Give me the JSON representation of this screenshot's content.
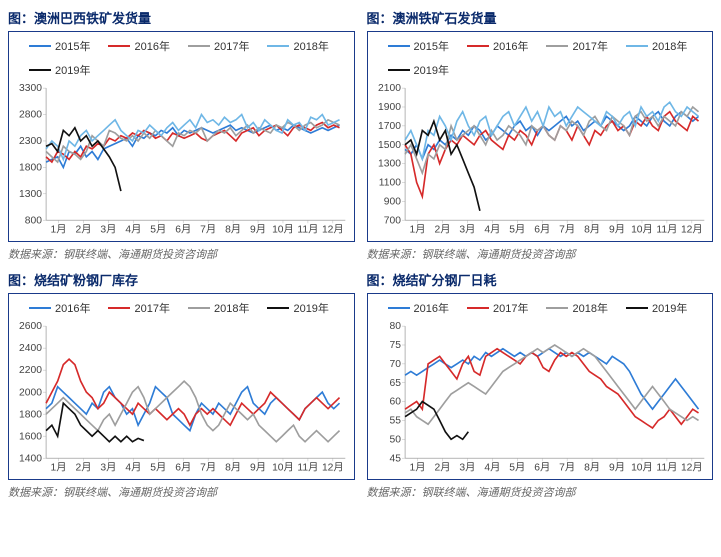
{
  "charts": [
    {
      "title": "图：澳洲巴西铁矿发货量",
      "source": "数据来源：钢联终端、海通期货投资咨询部",
      "type": "line",
      "legend_fontsize": 11,
      "title_fontsize": 13,
      "title_color": "#0a2a6b",
      "border_color": "#1a3a8a",
      "background_color": "#ffffff",
      "x_categories": [
        "1月",
        "2月",
        "3月",
        "4月",
        "5月",
        "6月",
        "7月",
        "8月",
        "9月",
        "10月",
        "11月",
        "12月"
      ],
      "ylim": [
        800,
        3300
      ],
      "ytick_step": 500,
      "colors": {
        "2015年": "#2e7cd6",
        "2016年": "#d62a2a",
        "2017年": "#9e9e9e",
        "2018年": "#6fb7e6",
        "2019年": "#111111"
      },
      "series": [
        {
          "name": "2015年",
          "points": [
            1900,
            1950,
            2000,
            1800,
            2100,
            2050,
            2200,
            2000,
            2100,
            1950,
            2150,
            2200,
            2250,
            2300,
            2350,
            2200,
            2400,
            2350,
            2450,
            2400,
            2500,
            2450,
            2550,
            2400,
            2500,
            2450,
            2500,
            2550,
            2500,
            2450,
            2500,
            2550,
            2600,
            2500,
            2550,
            2500,
            2450,
            2500,
            2550,
            2600,
            2500,
            2550,
            2500,
            2600,
            2550,
            2500,
            2450,
            2500,
            2550,
            2500,
            2550,
            2600
          ]
        },
        {
          "name": "2016年",
          "points": [
            2000,
            1900,
            2100,
            2050,
            1950,
            2100,
            2000,
            2200,
            2150,
            2250,
            2200,
            2350,
            2300,
            2400,
            2350,
            2450,
            2400,
            2500,
            2450,
            2350,
            2400,
            2300,
            2450,
            2400,
            2350,
            2400,
            2450,
            2350,
            2300,
            2400,
            2450,
            2500,
            2400,
            2300,
            2450,
            2500,
            2550,
            2400,
            2500,
            2550,
            2600,
            2500,
            2400,
            2550,
            2600,
            2550,
            2500,
            2600,
            2650,
            2550,
            2600,
            2550
          ]
        },
        {
          "name": "2017年",
          "points": [
            2100,
            2000,
            1900,
            2200,
            2100,
            2050,
            1950,
            2100,
            2400,
            2300,
            2200,
            2500,
            2450,
            2350,
            2300,
            2400,
            2300,
            2450,
            2350,
            2500,
            2400,
            2300,
            2200,
            2450,
            2400,
            2500,
            2450,
            2550,
            2300,
            2400,
            2500,
            2450,
            2550,
            2400,
            2500,
            2600,
            2450,
            2550,
            2500,
            2450,
            2600,
            2550,
            2650,
            2600,
            2500,
            2600,
            2650,
            2550,
            2600,
            2700,
            2650,
            2600
          ]
        },
        {
          "name": "2018年",
          "points": [
            2150,
            2300,
            2200,
            1950,
            2300,
            2200,
            2400,
            2500,
            2300,
            2400,
            2500,
            2600,
            2700,
            2500,
            2400,
            2300,
            2500,
            2450,
            2600,
            2500,
            2400,
            2550,
            2650,
            2500,
            2600,
            2700,
            2550,
            2800,
            2650,
            2700,
            2600,
            2750,
            2650,
            2700,
            2800,
            2550,
            2650,
            2500,
            2700,
            2600,
            2500,
            2450,
            2700,
            2600,
            2650,
            2500,
            2750,
            2700,
            2800,
            2600,
            2650,
            2700
          ]
        },
        {
          "name": "2019年",
          "points": [
            2200,
            2250,
            2100,
            2500,
            2400,
            2550,
            2300,
            2400,
            2200,
            2300,
            2150,
            2000,
            1800,
            1350
          ]
        }
      ]
    },
    {
      "title": "图：澳洲铁矿石发货量",
      "source": "数据来源：钢联终端、海通期货投资咨询部",
      "type": "line",
      "legend_fontsize": 11,
      "title_fontsize": 13,
      "title_color": "#0a2a6b",
      "border_color": "#1a3a8a",
      "background_color": "#ffffff",
      "x_categories": [
        "1月",
        "2月",
        "3月",
        "4月",
        "5月",
        "6月",
        "7月",
        "8月",
        "9月",
        "10月",
        "11月",
        "12月"
      ],
      "ylim": [
        700,
        2100
      ],
      "ytick_step": 200,
      "colors": {
        "2015年": "#2e7cd6",
        "2016年": "#d62a2a",
        "2017年": "#9e9e9e",
        "2018年": "#6fb7e6",
        "2019年": "#111111"
      },
      "series": [
        {
          "name": "2015年",
          "points": [
            1450,
            1400,
            1500,
            1350,
            1500,
            1450,
            1550,
            1500,
            1600,
            1550,
            1650,
            1600,
            1700,
            1650,
            1550,
            1600,
            1700,
            1650,
            1600,
            1700,
            1750,
            1650,
            1700,
            1600,
            1700,
            1650,
            1700,
            1750,
            1800,
            1700,
            1750,
            1650,
            1700,
            1750,
            1700,
            1800,
            1750,
            1700,
            1650,
            1700,
            1800,
            1750,
            1700,
            1800,
            1850,
            1750,
            1700,
            1800,
            1850,
            1800,
            1750,
            1800
          ]
        },
        {
          "name": "2016年",
          "points": [
            1500,
            1400,
            1100,
            950,
            1400,
            1500,
            1300,
            1450,
            1550,
            1500,
            1600,
            1550,
            1500,
            1600,
            1650,
            1550,
            1500,
            1450,
            1600,
            1550,
            1650,
            1600,
            1500,
            1650,
            1700,
            1600,
            1550,
            1700,
            1650,
            1550,
            1700,
            1600,
            1500,
            1650,
            1600,
            1700,
            1750,
            1650,
            1700,
            1600,
            1750,
            1700,
            1800,
            1700,
            1650,
            1800,
            1850,
            1750,
            1700,
            1650,
            1800,
            1750
          ]
        },
        {
          "name": "2017年",
          "points": [
            1400,
            1500,
            1350,
            1200,
            1400,
            1350,
            1500,
            1450,
            1700,
            1550,
            1600,
            1650,
            1700,
            1600,
            1500,
            1650,
            1550,
            1600,
            1700,
            1650,
            1600,
            1500,
            1700,
            1650,
            1700,
            1600,
            1550,
            1700,
            1650,
            1750,
            1700,
            1600,
            1750,
            1800,
            1700,
            1650,
            1800,
            1750,
            1700,
            1600,
            1800,
            1850,
            1750,
            1800,
            1700,
            1800,
            1750,
            1700,
            1850,
            1800,
            1900,
            1850
          ]
        },
        {
          "name": "2018年",
          "points": [
            1550,
            1650,
            1500,
            1350,
            1650,
            1600,
            1800,
            1700,
            1550,
            1750,
            1850,
            1700,
            1600,
            1750,
            1800,
            1600,
            1700,
            1800,
            1850,
            1700,
            1800,
            1900,
            1750,
            1850,
            1700,
            1900,
            1800,
            1850,
            1700,
            1800,
            1900,
            1850,
            1800,
            1750,
            1700,
            1850,
            1800,
            1700,
            1800,
            1850,
            1700,
            1900,
            1800,
            1850,
            1750,
            1900,
            1950,
            1850,
            1800,
            1900,
            1850,
            1800
          ]
        },
        {
          "name": "2019年",
          "points": [
            1500,
            1550,
            1400,
            1650,
            1600,
            1750,
            1550,
            1650,
            1400,
            1500,
            1350,
            1200,
            1050,
            800
          ]
        }
      ]
    },
    {
      "title": "图：烧结矿粉钢厂库存",
      "source": "数据来源：钢联终端、海通期货投资咨询部",
      "type": "line",
      "legend_fontsize": 11,
      "title_fontsize": 13,
      "title_color": "#0a2a6b",
      "border_color": "#1a3a8a",
      "background_color": "#ffffff",
      "x_categories": [
        "1月",
        "2月",
        "3月",
        "4月",
        "5月",
        "6月",
        "7月",
        "8月",
        "9月",
        "10月",
        "11月",
        "12月"
      ],
      "ylim": [
        1400,
        2600
      ],
      "ytick_step": 200,
      "colors": {
        "2016年": "#2e7cd6",
        "2017年": "#d62a2a",
        "2018年": "#9e9e9e",
        "2019年": "#111111"
      },
      "series": [
        {
          "name": "2016年",
          "points": [
            1850,
            1900,
            2050,
            2000,
            1950,
            1900,
            1850,
            1800,
            1900,
            1850,
            2000,
            2050,
            1950,
            1900,
            1800,
            1850,
            1700,
            1800,
            1900,
            2050,
            2000,
            1950,
            1800,
            1750,
            1700,
            1650,
            1800,
            1900,
            1850,
            1800,
            1900,
            1850,
            1800,
            1900,
            2000,
            2050,
            1900,
            1850,
            1800,
            1900,
            1950,
            1900,
            1850,
            1800,
            1750,
            1850,
            1900,
            1950,
            2000,
            1900,
            1850,
            1900
          ]
        },
        {
          "name": "2017年",
          "points": [
            1900,
            2000,
            2100,
            2250,
            2300,
            2250,
            2100,
            2000,
            1950,
            1850,
            1900,
            2000,
            1950,
            1900,
            1850,
            1800,
            1900,
            1850,
            1800,
            1850,
            1800,
            1750,
            1800,
            1850,
            1800,
            1700,
            1800,
            1850,
            1800,
            1850,
            1800,
            1750,
            1700,
            1800,
            1900,
            1850,
            1800,
            1850,
            1900,
            2000,
            1950,
            1900,
            1850,
            1800,
            1750,
            1850,
            1900,
            1950,
            1900,
            1850,
            1900,
            1950
          ]
        },
        {
          "name": "2018年",
          "points": [
            1800,
            1850,
            1900,
            1950,
            1900,
            1850,
            1800,
            1750,
            1700,
            1650,
            1750,
            1800,
            1700,
            1800,
            1900,
            2000,
            2050,
            1950,
            1800,
            1850,
            1900,
            1950,
            2000,
            2050,
            2100,
            2050,
            1950,
            1800,
            1700,
            1650,
            1700,
            1800,
            1900,
            1850,
            1800,
            1750,
            1800,
            1700,
            1650,
            1600,
            1550,
            1600,
            1650,
            1700,
            1600,
            1550,
            1600,
            1650,
            1600,
            1550,
            1600,
            1650
          ]
        },
        {
          "name": "2019年",
          "points": [
            1650,
            1700,
            1600,
            1900,
            1850,
            1800,
            1700,
            1650,
            1600,
            1650,
            1600,
            1550,
            1600,
            1550,
            1600,
            1550,
            1580,
            1560
          ]
        }
      ]
    },
    {
      "title": "图：烧结矿分钢厂日耗",
      "source": "数据来源：钢联终端、海通期货投资咨询部",
      "type": "line",
      "legend_fontsize": 11,
      "title_fontsize": 13,
      "title_color": "#0a2a6b",
      "border_color": "#1a3a8a",
      "background_color": "#ffffff",
      "x_categories": [
        "1月",
        "2月",
        "3月",
        "4月",
        "5月",
        "6月",
        "7月",
        "8月",
        "9月",
        "10月",
        "11月",
        "12月"
      ],
      "ylim": [
        45,
        80
      ],
      "ytick_step": 5,
      "colors": {
        "2016年": "#2e7cd6",
        "2017年": "#d62a2a",
        "2018年": "#9e9e9e",
        "2019年": "#111111"
      },
      "series": [
        {
          "name": "2016年",
          "points": [
            67,
            68,
            67,
            68,
            69,
            70,
            71,
            70,
            69,
            70,
            71,
            70,
            72,
            71,
            73,
            72,
            73,
            74,
            73,
            72,
            73,
            72,
            73,
            72,
            73,
            74,
            73,
            72,
            73,
            72,
            73,
            72,
            73,
            72,
            71,
            70,
            72,
            71,
            70,
            68,
            65,
            62,
            60,
            58,
            60,
            62,
            64,
            66,
            64,
            62,
            60,
            58
          ]
        },
        {
          "name": "2017年",
          "points": [
            58,
            59,
            60,
            58,
            70,
            71,
            72,
            70,
            68,
            66,
            70,
            72,
            68,
            67,
            72,
            73,
            74,
            73,
            72,
            71,
            70,
            72,
            73,
            72,
            69,
            68,
            71,
            73,
            72,
            73,
            72,
            70,
            68,
            67,
            66,
            64,
            63,
            62,
            60,
            58,
            56,
            55,
            54,
            53,
            55,
            56,
            58,
            56,
            54,
            56,
            58,
            57
          ]
        },
        {
          "name": "2018年",
          "points": [
            57,
            58,
            56,
            55,
            54,
            56,
            58,
            60,
            62,
            63,
            64,
            65,
            64,
            63,
            62,
            64,
            66,
            68,
            69,
            70,
            71,
            72,
            73,
            74,
            73,
            74,
            75,
            74,
            73,
            72,
            73,
            74,
            73,
            72,
            70,
            68,
            66,
            64,
            62,
            60,
            58,
            60,
            62,
            64,
            62,
            60,
            58,
            57,
            56,
            55,
            56,
            55
          ]
        },
        {
          "name": "2019年",
          "points": [
            56,
            57,
            58,
            60,
            59,
            58,
            55,
            52,
            50,
            51,
            50,
            52
          ]
        }
      ]
    }
  ]
}
